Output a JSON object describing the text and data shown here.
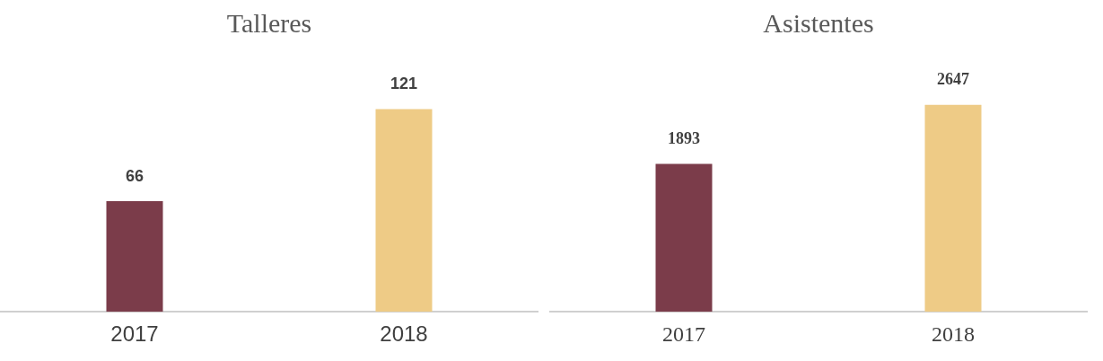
{
  "chart_data": [
    {
      "type": "bar",
      "title": "Talleres",
      "categories": [
        "2017",
        "2018"
      ],
      "values": [
        66,
        121
      ],
      "colors": [
        "#7b3c4a",
        "#eecb86"
      ],
      "data_labels": true
    },
    {
      "type": "bar",
      "title": "Asistentes",
      "categories": [
        "2017",
        "2018"
      ],
      "values": [
        1893,
        2647
      ],
      "colors": [
        "#7b3c4a",
        "#eecb86"
      ],
      "data_labels": true
    }
  ]
}
